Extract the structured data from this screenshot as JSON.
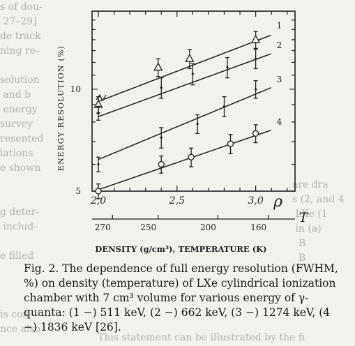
{
  "chart_data": {
    "type": "line",
    "title": "",
    "ylabel": "ENERGY RESOLUTION (%)",
    "xlabel": "DENSITY (g/cm³), TEMPERATURE (K)",
    "x_axis_symbol": "ρ",
    "x_secondary_symbol": "T",
    "xlim": [
      1.96,
      3.25
    ],
    "ylim": [
      5,
      17
    ],
    "y_scale": "log",
    "grid": false,
    "legend": "numbers at line ends, right",
    "x_ticks": [
      "2,0",
      "2,5",
      "3,0"
    ],
    "x_tick_values": [
      2.0,
      2.5,
      3.0
    ],
    "y_ticks": [
      "5",
      "10"
    ],
    "y_tick_values": [
      5,
      10
    ],
    "temperature_ticks": [
      "270",
      "250",
      "200",
      "160"
    ],
    "temperature_tick_positions": [
      2.09,
      2.38,
      2.76,
      3.08
    ],
    "series": [
      {
        "name": "1",
        "marker": "triangle",
        "fit": [
          [
            2.0,
            9.2
          ],
          [
            3.0,
            14.3
          ]
        ],
        "points": [
          {
            "x": 2.0,
            "y": 9.0,
            "err": 0.5
          },
          {
            "x": 2.38,
            "y": 11.6,
            "err": 0.7
          },
          {
            "x": 2.58,
            "y": 12.3,
            "err": 0.8
          },
          {
            "x": 3.0,
            "y": 14.0,
            "err": 0.8
          }
        ]
      },
      {
        "name": "2",
        "marker": "errorbar",
        "fit": [
          [
            2.0,
            8.3
          ],
          [
            3.0,
            12.6
          ]
        ],
        "points": [
          {
            "x": 2.0,
            "y": 8.5,
            "err": 0.4
          },
          {
            "x": 2.4,
            "y": 10.1,
            "err": 0.7
          },
          {
            "x": 2.6,
            "y": 11.1,
            "err": 0.8
          },
          {
            "x": 2.82,
            "y": 11.6,
            "err": 0.8
          },
          {
            "x": 3.0,
            "y": 12.3,
            "err": 0.8
          }
        ]
      },
      {
        "name": "3",
        "marker": "errorbar",
        "fit": [
          [
            2.0,
            6.2
          ],
          [
            3.0,
            10.0
          ]
        ],
        "points": [
          {
            "x": 2.0,
            "y": 6.0,
            "err": 0.3
          },
          {
            "x": 2.4,
            "y": 7.2,
            "err": 0.5
          },
          {
            "x": 2.63,
            "y": 7.9,
            "err": 0.5
          },
          {
            "x": 2.8,
            "y": 8.9,
            "err": 0.6
          },
          {
            "x": 3.0,
            "y": 10.0,
            "err": 0.6
          }
        ]
      },
      {
        "name": "4",
        "marker": "circle",
        "fit": [
          [
            2.0,
            5.05
          ],
          [
            3.0,
            7.5
          ]
        ],
        "points": [
          {
            "x": 2.0,
            "y": 5.0,
            "err": 0.25
          },
          {
            "x": 2.4,
            "y": 6.0,
            "err": 0.35
          },
          {
            "x": 2.59,
            "y": 6.3,
            "err": 0.4
          },
          {
            "x": 2.84,
            "y": 6.9,
            "err": 0.45
          },
          {
            "x": 3.0,
            "y": 7.4,
            "err": 0.45
          }
        ]
      }
    ]
  },
  "caption": "Fig. 2. The dependence of full energy resolution (FWHM, %) on density (temperature) of LXe cylindrical ionization chamber with 7 cm³ volume for various energy of γ-quanta: (1 −) 511 keV, (2 −) 662 keV, (3 −) 1274 keV, (4 −) 1836 keV [26].",
  "edges": {
    "left": "s of dou-\n 27–29]\nde track\nning re-\n\nsolution\n and b\n energy\nsurvey\nresented\nlations\ne shown\n\n\ng deter-\n includ-\n\ne filled\n\n\n\nis con-\nnce also",
    "right": "are dra\ns (2, and 4\n LXe (1\n in (a)\n  B\n  B",
    "bottom": "This statement can be illustrated by the fi"
  }
}
